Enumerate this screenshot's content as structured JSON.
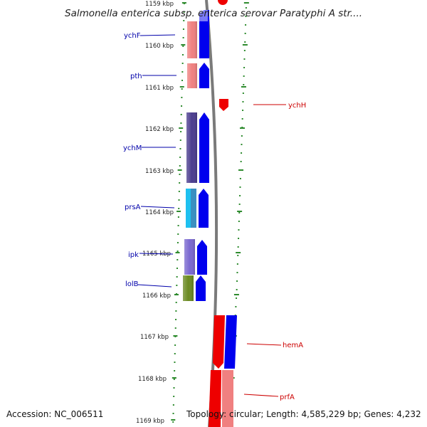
{
  "title": "Salmonella enterica subsp. enterica serovar Paratyphi A str....",
  "footer": {
    "accession": "Accession: NC_006511",
    "summary": "Topology: circular; Length: 4,585,229 bp; Genes: 4,232"
  },
  "ticks": [
    "1159 kbp",
    "1160 kbp",
    "1161 kbp",
    "1162 kbp",
    "1163 kbp",
    "1164 kbp",
    "1165 kbp",
    "1166 kbp",
    "1167 kbp",
    "1168 kbp",
    "1169 kbp"
  ],
  "forward_genes": [
    "ychF",
    "pth",
    "ychM",
    "prsA",
    "ipk",
    "lolB"
  ],
  "reverse_genes": [
    "ychH",
    "hemA",
    "prfA"
  ],
  "colors": {
    "forward_strand": "#0000ee",
    "reverse_strand": "#ee0000",
    "backbone": "#808080",
    "dotted_track": "#2e8b2e",
    "forward_label": "#0000aa",
    "reverse_label": "#cc0000"
  }
}
